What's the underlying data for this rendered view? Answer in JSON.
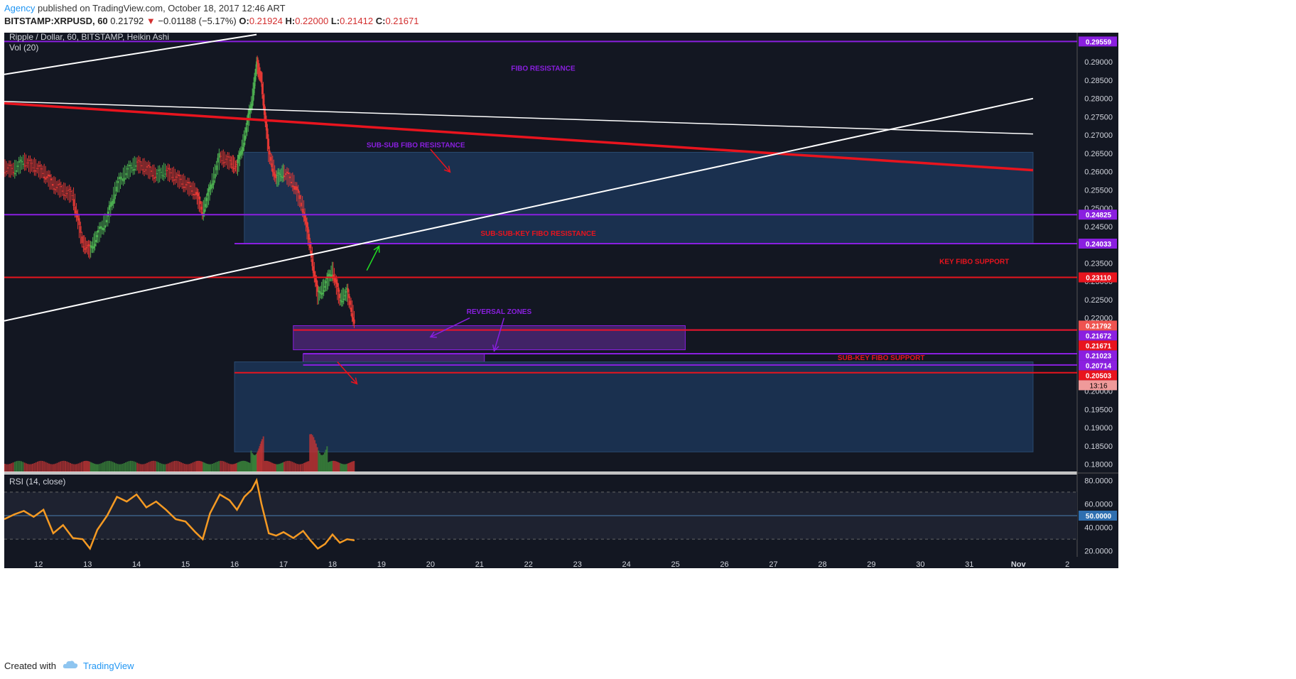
{
  "header": {
    "author": "Agency",
    "published_text": " published on TradingView.com, October 18, 2017 12:46 ART",
    "symbol": "BITSTAMP:XRPUSD, 60",
    "last": "0.21792",
    "arrow": "▼",
    "change": "−0.01188 (−5.17%)",
    "o_label": "O:",
    "o_value": "0.21924",
    "h_label": "H:",
    "h_value": "0.22000",
    "l_label": "L:",
    "l_value": "0.21412",
    "c_label": "C:",
    "c_value": "0.21671"
  },
  "footer": {
    "created_with": "Created with",
    "brand": "TradingView"
  },
  "colors": {
    "background": "#131722",
    "purple": "#8a1fe0",
    "red": "#e8141e",
    "white": "#ffffff",
    "zone_blue": "#1e3a5f",
    "zone_purple": "#5b2a8c",
    "candle_up": "#3c8a3c",
    "candle_down": "#c03535",
    "rsi": "#f59a23",
    "axis_text": "#d1d4dc"
  },
  "chart_data": {
    "type": "candlestick",
    "title": "Ripple / Dollar, 60, BITSTAMP, Heikin Ashi",
    "volume_label": "Vol (20)",
    "rsi_label": "RSI (14, close)",
    "ylim": [
      0.178,
      0.298
    ],
    "x_ticks": [
      "12",
      "13",
      "14",
      "15",
      "16",
      "17",
      "18",
      "19",
      "20",
      "21",
      "22",
      "23",
      "24",
      "25",
      "26",
      "27",
      "28",
      "29",
      "30",
      "31",
      "Nov",
      "2"
    ],
    "y_ticks": [
      "0.29000",
      "0.28500",
      "0.28000",
      "0.27500",
      "0.27000",
      "0.26500",
      "0.26000",
      "0.25500",
      "0.25000",
      "0.24500",
      "0.23500",
      "0.23000",
      "0.22500",
      "0.22000",
      "0.20000",
      "0.19500",
      "0.19000",
      "0.18500",
      "0.18000"
    ],
    "rsi_ticks": [
      "80.0000",
      "60.0000",
      "40.0000",
      "20.0000"
    ],
    "rsi_range": [
      15,
      85
    ],
    "levels": [
      {
        "price": 0.29559,
        "label": "0.29559",
        "color": "purple",
        "start": 0
      },
      {
        "price": 0.24825,
        "label": "0.24825",
        "color": "purple",
        "start": 0
      },
      {
        "price": 0.24033,
        "label": "0.24033",
        "color": "purple",
        "start": 16.0
      },
      {
        "price": 0.2311,
        "label": "0.23110",
        "color": "red",
        "start": 0
      },
      {
        "price": 0.21792,
        "label": "0.21792",
        "color": "salmon",
        "start": 17.2
      },
      {
        "price": 0.21672,
        "label": "0.21672",
        "color": "purple",
        "start": 17.2
      },
      {
        "price": 0.21671,
        "label": "0.21671",
        "color": "red",
        "start": 17.2
      },
      {
        "price": 0.21023,
        "label": "0.21023",
        "color": "purple",
        "start": 17.4
      },
      {
        "price": 0.20714,
        "label": "0.20714",
        "color": "purple",
        "start": 17.4
      },
      {
        "price": 0.20503,
        "label": "0.20503",
        "color": "red",
        "start": 16.0
      }
    ],
    "countdown": "13:16",
    "rsi_mid_label": "50.0000",
    "annotations": [
      {
        "text": "FIBO RESISTANCE",
        "x": 22.3,
        "price": 0.2876,
        "color": "purple"
      },
      {
        "text": "SUB-SUB FIBO RESISTANCE",
        "x": 19.7,
        "price": 0.2666,
        "color": "purple"
      },
      {
        "text": "SUB-SUB-KEY FIBO RESISTANCE",
        "x": 22.2,
        "price": 0.2425,
        "color": "red"
      },
      {
        "text": "KEY FIBO SUPPORT",
        "x": 31.1,
        "price": 0.2348,
        "color": "red"
      },
      {
        "text": "REVERSAL ZONES",
        "x": 21.4,
        "price": 0.2211,
        "color": "purple"
      },
      {
        "text": "SUB-KEY FIBO SUPPORT",
        "x": 29.2,
        "price": 0.2085,
        "color": "red"
      }
    ],
    "zones": [
      {
        "x0": 16.2,
        "x1": 32.3,
        "p0": 0.2653,
        "p1": 0.2403,
        "color": "zone_blue"
      },
      {
        "x0": 17.2,
        "x1": 25.2,
        "p0": 0.2179,
        "p1": 0.2113,
        "color": "zone_purple"
      },
      {
        "x0": 17.4,
        "x1": 21.1,
        "p0": 0.2102,
        "p1": 0.208,
        "color": "zone_purple"
      },
      {
        "x0": 16.0,
        "x1": 32.3,
        "p0": 0.208,
        "p1": 0.1834,
        "color": "zone_blue"
      }
    ],
    "trendlines": [
      {
        "x0": 11.3,
        "p0": 0.2866,
        "x1": 16.45,
        "p1": 0.2975,
        "color": "white",
        "width": 2
      },
      {
        "x0": 11.3,
        "p0": 0.2792,
        "x1": 32.3,
        "p1": 0.2703,
        "color": "white",
        "width": 1.5
      },
      {
        "x0": 11.3,
        "p0": 0.2787,
        "x1": 32.3,
        "p1": 0.2604,
        "color": "red",
        "width": 3.5
      },
      {
        "x0": 11.3,
        "p0": 0.2192,
        "x1": 32.3,
        "p1": 0.28,
        "color": "white",
        "width": 2
      }
    ],
    "arrows": [
      {
        "x0": 20.0,
        "p0": 0.2661,
        "x1": 20.4,
        "p1": 0.2599,
        "color": "red"
      },
      {
        "x0": 18.7,
        "p0": 0.233,
        "x1": 18.95,
        "p1": 0.2396,
        "color": "green"
      },
      {
        "x0": 20.8,
        "p0": 0.22,
        "x1": 20.0,
        "p1": 0.2148,
        "color": "purple"
      },
      {
        "x0": 21.5,
        "p0": 0.22,
        "x1": 21.3,
        "p1": 0.211,
        "color": "purple"
      },
      {
        "x0": 18.1,
        "p0": 0.208,
        "x1": 18.5,
        "p1": 0.202,
        "color": "red"
      }
    ],
    "series": [
      {
        "name": "Heikin Ashi",
        "close_path": [
          [
            11.3,
            0.261
          ],
          [
            11.5,
            0.2605
          ],
          [
            11.7,
            0.2628
          ],
          [
            11.9,
            0.2615
          ],
          [
            12.1,
            0.2598
          ],
          [
            12.3,
            0.2565
          ],
          [
            12.5,
            0.2548
          ],
          [
            12.7,
            0.2535
          ],
          [
            12.9,
            0.2405
          ],
          [
            13.05,
            0.2385
          ],
          [
            13.2,
            0.2425
          ],
          [
            13.4,
            0.247
          ],
          [
            13.6,
            0.2562
          ],
          [
            13.8,
            0.26
          ],
          [
            14.0,
            0.2622
          ],
          [
            14.2,
            0.261
          ],
          [
            14.4,
            0.259
          ],
          [
            14.6,
            0.2602
          ],
          [
            14.8,
            0.2585
          ],
          [
            15.0,
            0.2565
          ],
          [
            15.2,
            0.2545
          ],
          [
            15.35,
            0.249
          ],
          [
            15.5,
            0.255
          ],
          [
            15.7,
            0.264
          ],
          [
            15.9,
            0.2628
          ],
          [
            16.05,
            0.2612
          ],
          [
            16.2,
            0.269
          ],
          [
            16.35,
            0.279
          ],
          [
            16.45,
            0.2895
          ],
          [
            16.55,
            0.285
          ],
          [
            16.7,
            0.265
          ],
          [
            16.85,
            0.258
          ],
          [
            17.0,
            0.2598
          ],
          [
            17.2,
            0.257
          ],
          [
            17.4,
            0.25
          ],
          [
            17.55,
            0.239
          ],
          [
            17.7,
            0.226
          ],
          [
            17.85,
            0.229
          ],
          [
            18.0,
            0.233
          ],
          [
            18.15,
            0.225
          ],
          [
            18.3,
            0.227
          ],
          [
            18.45,
            0.219
          ]
        ]
      }
    ],
    "rsi_path": [
      [
        11.3,
        47
      ],
      [
        11.5,
        51
      ],
      [
        11.7,
        54
      ],
      [
        11.9,
        49
      ],
      [
        12.1,
        55
      ],
      [
        12.3,
        35
      ],
      [
        12.5,
        42
      ],
      [
        12.7,
        31
      ],
      [
        12.9,
        30
      ],
      [
        13.05,
        22
      ],
      [
        13.2,
        38
      ],
      [
        13.4,
        50
      ],
      [
        13.6,
        66
      ],
      [
        13.8,
        62
      ],
      [
        14.0,
        68
      ],
      [
        14.2,
        57
      ],
      [
        14.4,
        62
      ],
      [
        14.6,
        55
      ],
      [
        14.8,
        47
      ],
      [
        15.0,
        45
      ],
      [
        15.2,
        36
      ],
      [
        15.35,
        30
      ],
      [
        15.5,
        52
      ],
      [
        15.7,
        68
      ],
      [
        15.9,
        63
      ],
      [
        16.05,
        55
      ],
      [
        16.2,
        66
      ],
      [
        16.35,
        72
      ],
      [
        16.45,
        80
      ],
      [
        16.55,
        60
      ],
      [
        16.7,
        35
      ],
      [
        16.85,
        33
      ],
      [
        17.0,
        36
      ],
      [
        17.2,
        31
      ],
      [
        17.4,
        37
      ],
      [
        17.55,
        29
      ],
      [
        17.7,
        22
      ],
      [
        17.85,
        26
      ],
      [
        18.0,
        34
      ],
      [
        18.15,
        27
      ],
      [
        18.3,
        30
      ],
      [
        18.45,
        29
      ]
    ]
  }
}
